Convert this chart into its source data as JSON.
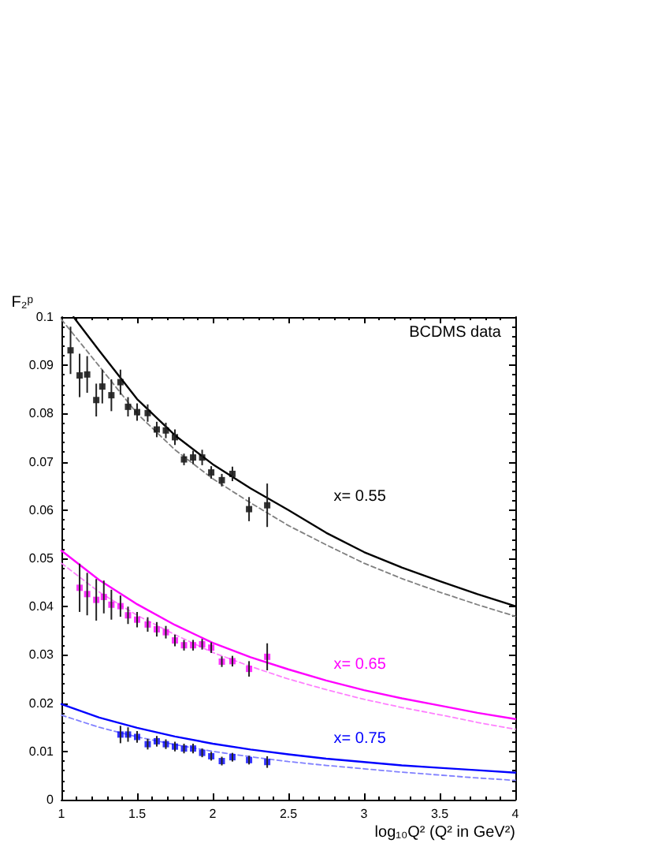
{
  "chart_data": {
    "type": "scatter",
    "xlabel": "log₁₀Q² (Q² in GeV²)",
    "ylabel": "F₂ᵖ",
    "annotations": [
      "BCDMS data"
    ],
    "xlim": [
      1,
      4
    ],
    "xticks": [
      1,
      1.5,
      2,
      2.5,
      3,
      3.5,
      4
    ],
    "ylim": [
      0,
      0.1
    ],
    "yticks": [
      0,
      0.01,
      0.02,
      0.03,
      0.04,
      0.05,
      0.06,
      0.07,
      0.08,
      0.09,
      0.1
    ],
    "marker": "square",
    "series": [
      {
        "color": "#000000",
        "x": [
          1.06,
          1.12,
          1.17,
          1.23,
          1.27,
          1.33,
          1.39,
          1.44,
          1.5,
          1.57,
          1.63,
          1.69,
          1.75,
          1.81,
          1.87,
          1.93,
          1.99,
          2.06,
          2.13,
          2.24,
          2.36
        ],
        "values": [
          0.0931,
          0.0879,
          0.0881,
          0.0828,
          0.0856,
          0.0838,
          0.0865,
          0.0814,
          0.0803,
          0.0801,
          0.0767,
          0.0765,
          0.0751,
          0.0705,
          0.0709,
          0.0709,
          0.0678,
          0.0662,
          0.0675,
          0.0602,
          0.061
        ],
        "errors": [
          0.0049,
          0.0045,
          0.0038,
          0.0034,
          0.0035,
          0.0033,
          0.0026,
          0.002,
          0.0018,
          0.0018,
          0.0016,
          0.0016,
          0.0016,
          0.0012,
          0.0014,
          0.0016,
          0.0013,
          0.0013,
          0.0015,
          0.0025,
          0.0045
        ]
      },
      {
        "type": "line",
        "name": "x= 0.55",
        "line_style": "solid",
        "marker": "none",
        "color": "#000000",
        "x": [
          1.08,
          1.25,
          1.5,
          1.75,
          2,
          2.25,
          2.5,
          2.75,
          3,
          3.25,
          3.5,
          3.75,
          4
        ],
        "values": [
          0.1,
          0.093,
          0.083,
          0.0755,
          0.0695,
          0.0645,
          0.06,
          0.0553,
          0.0513,
          0.0481,
          0.0453,
          0.0426,
          0.0401
        ]
      },
      {
        "type": "line",
        "line_style": "dashed",
        "marker": "none",
        "color": "#808080",
        "x": [
          1,
          1.25,
          1.5,
          1.75,
          2,
          2.25,
          2.5,
          2.75,
          3,
          3.25,
          3.5,
          3.75,
          4
        ],
        "values": [
          0.0995,
          0.0898,
          0.08,
          0.0725,
          0.0665,
          0.0615,
          0.0568,
          0.0528,
          0.049,
          0.0458,
          0.043,
          0.0404,
          0.038
        ]
      },
      {
        "color": "#ff00ff",
        "x": [
          1.12,
          1.17,
          1.23,
          1.28,
          1.33,
          1.39,
          1.44,
          1.5,
          1.57,
          1.63,
          1.69,
          1.75,
          1.81,
          1.87,
          1.93,
          1.99,
          2.06,
          2.13,
          2.24,
          2.36
        ],
        "values": [
          0.0439,
          0.0426,
          0.0414,
          0.042,
          0.0404,
          0.0401,
          0.0382,
          0.0373,
          0.0363,
          0.0353,
          0.0347,
          0.033,
          0.032,
          0.032,
          0.0322,
          0.0315,
          0.0286,
          0.0287,
          0.0271,
          0.0296
        ],
        "errors": [
          0.005,
          0.0044,
          0.0043,
          0.0034,
          0.0031,
          0.0022,
          0.0018,
          0.0016,
          0.0015,
          0.0015,
          0.0013,
          0.0012,
          0.0011,
          0.0011,
          0.0011,
          0.0011,
          0.0011,
          0.0011,
          0.0016,
          0.0028
        ]
      },
      {
        "type": "line",
        "name": "x= 0.65",
        "line_style": "solid",
        "marker": "none",
        "color": "#ff00ff",
        "x": [
          1,
          1.25,
          1.5,
          1.75,
          2,
          2.25,
          2.5,
          2.75,
          3,
          3.25,
          3.5,
          3.75,
          4
        ],
        "values": [
          0.0516,
          0.0455,
          0.0405,
          0.0362,
          0.0325,
          0.0295,
          0.027,
          0.0247,
          0.0227,
          0.021,
          0.0195,
          0.018,
          0.0167
        ]
      },
      {
        "type": "line",
        "line_style": "dashed",
        "marker": "none",
        "color": "#ff80ff",
        "x": [
          1,
          1.25,
          1.5,
          1.75,
          2,
          2.25,
          2.5,
          2.75,
          3,
          3.25,
          3.5,
          3.75,
          4
        ],
        "values": [
          0.049,
          0.043,
          0.0382,
          0.0342,
          0.0305,
          0.0276,
          0.025,
          0.0228,
          0.0208,
          0.0191,
          0.0176,
          0.016,
          0.0146
        ]
      },
      {
        "color": "#0000ff",
        "x": [
          1.39,
          1.44,
          1.5,
          1.57,
          1.63,
          1.69,
          1.75,
          1.81,
          1.87,
          1.93,
          1.99,
          2.06,
          2.13,
          2.24,
          2.36
        ],
        "values": [
          0.0135,
          0.0135,
          0.013,
          0.0115,
          0.0121,
          0.0115,
          0.011,
          0.0106,
          0.0106,
          0.0097,
          0.009,
          0.008,
          0.0088,
          0.0082,
          0.0078
        ],
        "errors": [
          0.0018,
          0.0015,
          0.0012,
          0.0011,
          0.0011,
          0.001,
          0.001,
          0.001,
          0.001,
          0.0009,
          0.0009,
          0.0009,
          0.0009,
          0.0009,
          0.0012
        ]
      },
      {
        "type": "line",
        "name": "x= 0.75",
        "line_style": "solid",
        "marker": "none",
        "color": "#0000ff",
        "x": [
          1,
          1.25,
          1.5,
          1.75,
          2,
          2.25,
          2.5,
          2.75,
          3,
          3.25,
          3.5,
          3.75,
          4
        ],
        "values": [
          0.0198,
          0.017,
          0.0149,
          0.0131,
          0.0116,
          0.0104,
          0.0094,
          0.0085,
          0.0078,
          0.0071,
          0.0066,
          0.0061,
          0.0056
        ]
      },
      {
        "type": "line",
        "line_style": "dashed",
        "marker": "none",
        "color": "#8080ff",
        "x": [
          1,
          1.25,
          1.5,
          1.75,
          2,
          2.25,
          2.5,
          2.75,
          3,
          3.25,
          3.5,
          3.75,
          4
        ],
        "values": [
          0.0175,
          0.015,
          0.013,
          0.0114,
          0.01,
          0.0089,
          0.0079,
          0.0071,
          0.0064,
          0.0057,
          0.0051,
          0.0045,
          0.004
        ]
      }
    ]
  }
}
